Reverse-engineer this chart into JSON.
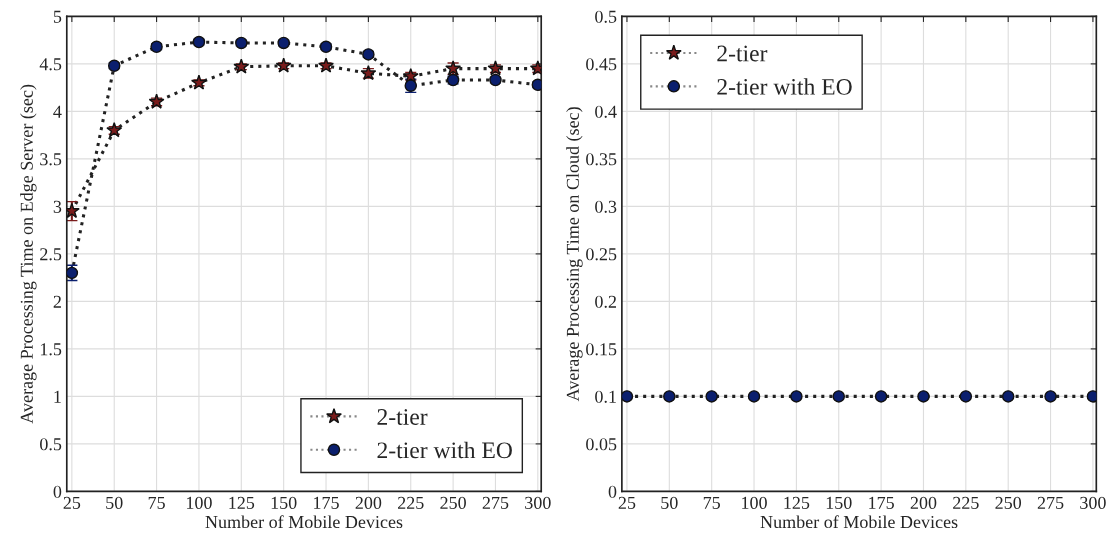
{
  "chart_data": [
    {
      "type": "line",
      "xlabel": "Number of Mobile Devices",
      "ylabel": "Average Processing Time on Edge Server (sec)",
      "x": [
        25,
        50,
        75,
        100,
        125,
        150,
        175,
        200,
        225,
        250,
        275,
        300
      ],
      "xlim": [
        22,
        302
      ],
      "xticks": [
        25,
        50,
        75,
        100,
        125,
        150,
        175,
        200,
        225,
        250,
        275,
        300
      ],
      "ylim": [
        0,
        5
      ],
      "yticks": [
        0,
        0.5,
        1,
        1.5,
        2,
        2.5,
        3,
        3.5,
        4,
        4.5,
        5
      ],
      "grid": true,
      "legend": "bottom right",
      "line_style": "dotted",
      "series": [
        {
          "name": "2-tier",
          "color": "#7a1c1c",
          "marker": "star",
          "values": [
            2.95,
            3.8,
            4.1,
            4.3,
            4.47,
            4.48,
            4.48,
            4.4,
            4.37,
            4.45,
            4.45,
            4.45
          ],
          "errors": [
            0.1,
            0.04,
            0.04,
            0.03,
            0.03,
            0.03,
            0.03,
            0.05,
            0.04,
            0.06,
            0.04,
            0.04
          ]
        },
        {
          "name": "2-tier with EO",
          "color": "#0b1f6e",
          "marker": "circle",
          "values": [
            2.3,
            4.48,
            4.68,
            4.73,
            4.72,
            4.72,
            4.68,
            4.6,
            4.27,
            4.33,
            4.33,
            4.28
          ],
          "errors": [
            0.08,
            0.03,
            0.03,
            0.03,
            0.03,
            0.03,
            0.03,
            0.03,
            0.07,
            0.04,
            0.03,
            0.03
          ]
        }
      ]
    },
    {
      "type": "line",
      "xlabel": "Number of Mobile Devices",
      "ylabel": "Average Processing Time on Cloud (sec)",
      "x": [
        25,
        50,
        75,
        100,
        125,
        150,
        175,
        200,
        225,
        250,
        275,
        300
      ],
      "xlim": [
        22,
        302
      ],
      "xticks": [
        25,
        50,
        75,
        100,
        125,
        150,
        175,
        200,
        225,
        250,
        275,
        300
      ],
      "ylim": [
        0,
        0.5
      ],
      "yticks": [
        0,
        0.05,
        0.1,
        0.15,
        0.2,
        0.25,
        0.3,
        0.35,
        0.4,
        0.45,
        0.5
      ],
      "grid": true,
      "legend": "top left",
      "line_style": "dotted",
      "series": [
        {
          "name": "2-tier",
          "color": "#7a1c1c",
          "marker": "star",
          "values": [
            null,
            null,
            null,
            null,
            null,
            null,
            null,
            null,
            null,
            null,
            null,
            null
          ]
        },
        {
          "name": "2-tier with EO",
          "color": "#0b1f6e",
          "marker": "circle",
          "values": [
            0.1,
            0.1,
            0.1,
            0.1,
            0.1,
            0.1,
            0.1,
            0.1,
            0.1,
            0.1,
            0.1,
            0.1
          ]
        }
      ]
    }
  ]
}
